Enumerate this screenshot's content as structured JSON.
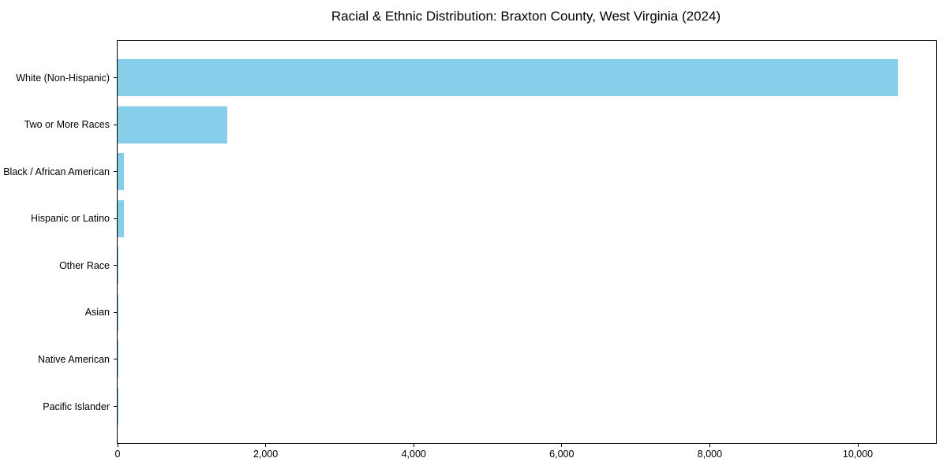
{
  "title": "Racial & Ethnic Distribution: Braxton County, West Virginia (2024)",
  "colors": {
    "bar": "#87CEEB",
    "spine": "#000000",
    "text": "#000000",
    "background": "#FFFFFF"
  },
  "chart_data": {
    "type": "bar",
    "orientation": "horizontal",
    "title": "Racial & Ethnic Distribution: Braxton County, West Virginia (2024)",
    "categories": [
      "White (Non-Hispanic)",
      "Two or More Races",
      "Black / African American",
      "Hispanic or Latino",
      "Other Race",
      "Asian",
      "Native American",
      "Pacific Islander"
    ],
    "values": [
      10545,
      1480,
      85,
      90,
      15,
      12,
      5,
      2
    ],
    "xlabel": "",
    "ylabel": "",
    "xlim": [
      0,
      11055
    ],
    "xticks": [
      {
        "value": 0,
        "label": "0"
      },
      {
        "value": 2000,
        "label": "2,000"
      },
      {
        "value": 4000,
        "label": "4,000"
      },
      {
        "value": 6000,
        "label": "6,000"
      },
      {
        "value": 8000,
        "label": "8,000"
      },
      {
        "value": 10000,
        "label": "10,000"
      }
    ],
    "grid": false,
    "legend": "none",
    "bar_color": "#87CEEB"
  }
}
